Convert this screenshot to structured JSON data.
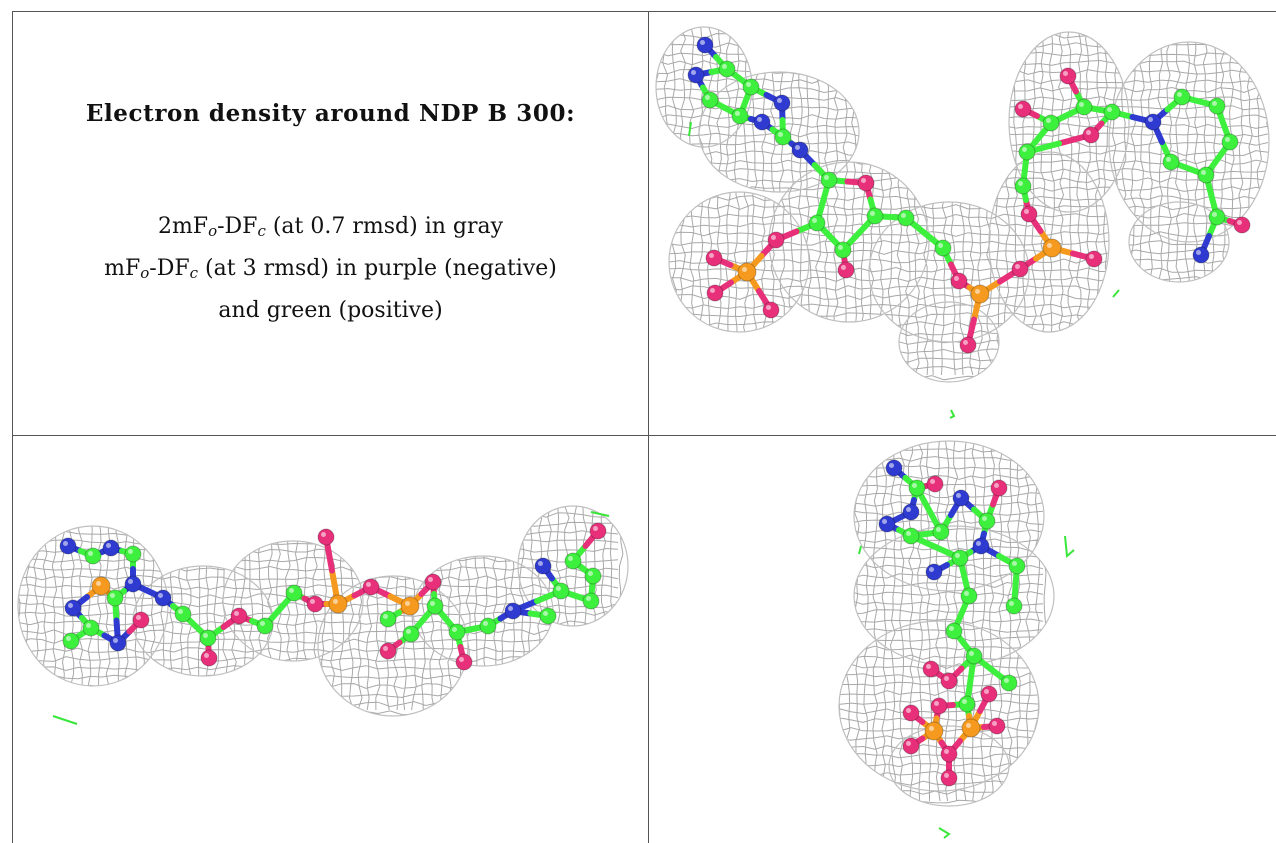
{
  "caption": {
    "title": "Electron density around NDP B 300:",
    "line1": {
      "pre": "2mF",
      "sub1": "o",
      "mid": "-DF",
      "sub2": "c",
      "post": " (at 0.7 rmsd) in gray"
    },
    "line2": {
      "pre": "mF",
      "sub1": "o",
      "mid": "-DF",
      "sub2": "c",
      "post": " (at 3 rmsd) in purple (negative)"
    },
    "line3": "and green (positive)"
  },
  "colors": {
    "carbon": "#3ef03e",
    "nitrogen": "#2f3bd0",
    "oxygen": "#e8307a",
    "phosphorus": "#f59a1e",
    "mesh": "#9a9a9a",
    "positive_density": "#39e639",
    "grid_lines": "#555555"
  },
  "panels": [
    {
      "view": "view-1"
    },
    {
      "view": "view-2"
    },
    {
      "view": "view-3"
    }
  ]
}
